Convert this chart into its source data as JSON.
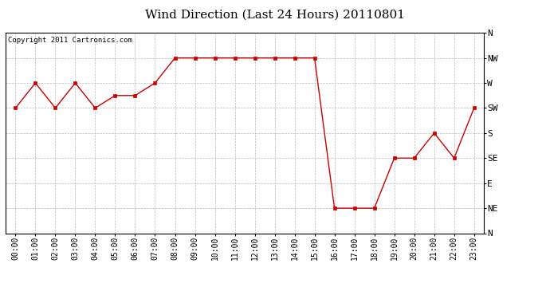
{
  "title": "Wind Direction (Last 24 Hours) 20110801",
  "copyright_text": "Copyright 2011 Cartronics.com",
  "x_labels": [
    "00:00",
    "01:00",
    "02:00",
    "03:00",
    "04:00",
    "05:00",
    "06:00",
    "07:00",
    "08:00",
    "09:00",
    "10:00",
    "11:00",
    "12:00",
    "13:00",
    "14:00",
    "15:00",
    "16:00",
    "17:00",
    "18:00",
    "19:00",
    "20:00",
    "21:00",
    "22:00",
    "23:00"
  ],
  "y_ticks_display": [
    "N",
    "NE",
    "E",
    "SE",
    "S",
    "SW",
    "W",
    "NW",
    "N"
  ],
  "y_ticks_values": [
    0,
    2,
    4,
    6,
    8,
    10,
    12,
    14,
    16
  ],
  "wind_data": [
    10,
    12,
    10,
    12,
    10,
    11,
    11,
    12,
    14,
    14,
    14,
    14,
    14,
    14,
    14,
    14,
    2,
    2,
    2,
    6,
    6,
    8,
    6,
    10
  ],
  "line_color": "#cc0000",
  "marker": "s",
  "marker_size": 2.5,
  "bg_color": "#ffffff",
  "grid_color": "#bbbbbb",
  "grid_style": "--",
  "title_fontsize": 11,
  "copyright_fontsize": 6.5,
  "tick_fontsize": 7,
  "ytick_fontsize": 8
}
